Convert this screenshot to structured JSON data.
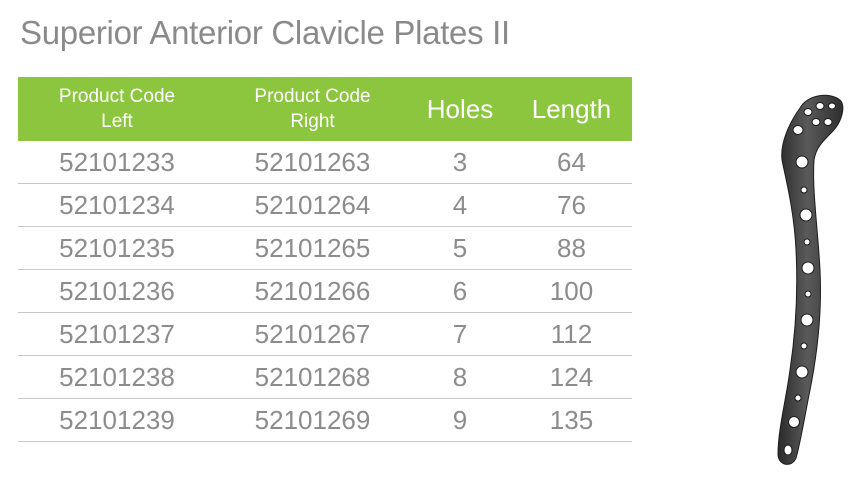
{
  "title": "Superior Anterior Clavicle Plates II",
  "table": {
    "headers": {
      "left": [
        "Product Code",
        "Left"
      ],
      "right": [
        "Product Code",
        "Right"
      ],
      "holes": "Holes",
      "length": "Length"
    },
    "rows": [
      {
        "left": "52101233",
        "right": "52101263",
        "holes": "3",
        "length": "64"
      },
      {
        "left": "52101234",
        "right": "52101264",
        "holes": "4",
        "length": "76"
      },
      {
        "left": "52101235",
        "right": "52101265",
        "holes": "5",
        "length": "88"
      },
      {
        "left": "52101236",
        "right": "52101266",
        "holes": "6",
        "length": "100"
      },
      {
        "left": "52101237",
        "right": "52101267",
        "holes": "7",
        "length": "112"
      },
      {
        "left": "52101238",
        "right": "52101268",
        "holes": "8",
        "length": "124"
      },
      {
        "left": "52101239",
        "right": "52101269",
        "holes": "9",
        "length": "135"
      }
    ]
  },
  "colors": {
    "header_background": "#8cc63f",
    "header_text": "#ffffff",
    "body_text": "#8c8c8c",
    "title_text": "#8a8a8a",
    "row_divider": "#c9c9c9",
    "plate_metal": "#3d3d3d"
  },
  "image": {
    "icon": "clavicle-plate-illustration"
  }
}
